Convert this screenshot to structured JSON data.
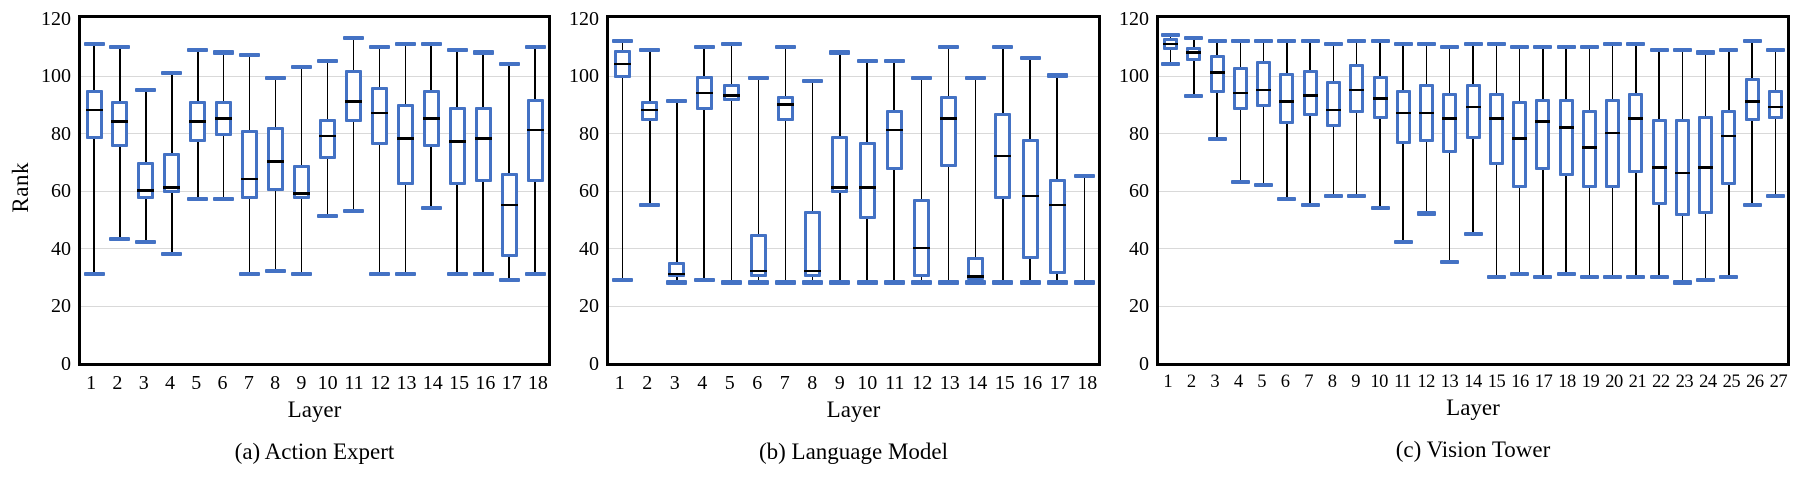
{
  "figure": {
    "y_axis_title": "Rank",
    "x_axis_title": "Layer",
    "accent_color": "#4472c4",
    "median_color": "#000000",
    "whisker_color": "#000000",
    "gridline_color": "#d9d9d9",
    "frame_color": "#000000",
    "box_fill": "#ffffff"
  },
  "chart_data": [
    {
      "type": "boxplot",
      "caption": "(a) Action Expert",
      "xlabel": "Layer",
      "ylabel": "Rank",
      "ylim": [
        0,
        120
      ],
      "y_ticks": [
        0,
        20,
        40,
        60,
        80,
        100,
        120
      ],
      "grid": true,
      "legend": "none",
      "series": [
        {
          "layer": 1,
          "whisker_low": 31,
          "q1": 78,
          "median": 88,
          "q3": 95,
          "whisker_high": 111
        },
        {
          "layer": 2,
          "whisker_low": 43,
          "q1": 75,
          "median": 84,
          "q3": 91,
          "whisker_high": 110
        },
        {
          "layer": 3,
          "whisker_low": 42,
          "q1": 57,
          "median": 60,
          "q3": 70,
          "whisker_high": 95
        },
        {
          "layer": 4,
          "whisker_low": 38,
          "q1": 59,
          "median": 61,
          "q3": 73,
          "whisker_high": 101
        },
        {
          "layer": 5,
          "whisker_low": 57,
          "q1": 77,
          "median": 84,
          "q3": 91,
          "whisker_high": 109
        },
        {
          "layer": 6,
          "whisker_low": 57,
          "q1": 79,
          "median": 85,
          "q3": 91,
          "whisker_high": 108
        },
        {
          "layer": 7,
          "whisker_low": 31,
          "q1": 57,
          "median": 64,
          "q3": 81,
          "whisker_high": 107
        },
        {
          "layer": 8,
          "whisker_low": 32,
          "q1": 60,
          "median": 70,
          "q3": 82,
          "whisker_high": 99
        },
        {
          "layer": 9,
          "whisker_low": 31,
          "q1": 57,
          "median": 59,
          "q3": 69,
          "whisker_high": 103
        },
        {
          "layer": 10,
          "whisker_low": 51,
          "q1": 71,
          "median": 79,
          "q3": 85,
          "whisker_high": 105
        },
        {
          "layer": 11,
          "whisker_low": 53,
          "q1": 84,
          "median": 91,
          "q3": 102,
          "whisker_high": 113
        },
        {
          "layer": 12,
          "whisker_low": 31,
          "q1": 76,
          "median": 87,
          "q3": 96,
          "whisker_high": 110
        },
        {
          "layer": 13,
          "whisker_low": 31,
          "q1": 62,
          "median": 78,
          "q3": 90,
          "whisker_high": 111
        },
        {
          "layer": 14,
          "whisker_low": 54,
          "q1": 75,
          "median": 85,
          "q3": 95,
          "whisker_high": 111
        },
        {
          "layer": 15,
          "whisker_low": 31,
          "q1": 62,
          "median": 77,
          "q3": 89,
          "whisker_high": 109
        },
        {
          "layer": 16,
          "whisker_low": 31,
          "q1": 63,
          "median": 78,
          "q3": 89,
          "whisker_high": 108
        },
        {
          "layer": 17,
          "whisker_low": 29,
          "q1": 37,
          "median": 55,
          "q3": 66,
          "whisker_high": 104
        },
        {
          "layer": 18,
          "whisker_low": 31,
          "q1": 63,
          "median": 81,
          "q3": 92,
          "whisker_high": 110
        }
      ]
    },
    {
      "type": "boxplot",
      "caption": "(b) Language Model",
      "xlabel": "Layer",
      "ylabel": "Rank",
      "ylim": [
        0,
        120
      ],
      "y_ticks": [
        0,
        20,
        40,
        60,
        80,
        100,
        120
      ],
      "grid": true,
      "legend": "none",
      "series": [
        {
          "layer": 1,
          "whisker_low": 29,
          "q1": 99,
          "median": 104,
          "q3": 109,
          "whisker_high": 112
        },
        {
          "layer": 2,
          "whisker_low": 55,
          "q1": 84,
          "median": 88,
          "q3": 91,
          "whisker_high": 109
        },
        {
          "layer": 3,
          "whisker_low": 28,
          "q1": 30,
          "median": 31,
          "q3": 35,
          "whisker_high": 91
        },
        {
          "layer": 4,
          "whisker_low": 29,
          "q1": 88,
          "median": 94,
          "q3": 100,
          "whisker_high": 110
        },
        {
          "layer": 5,
          "whisker_low": 28,
          "q1": 91,
          "median": 93,
          "q3": 97,
          "whisker_high": 111
        },
        {
          "layer": 6,
          "whisker_low": 28,
          "q1": 30,
          "median": 32,
          "q3": 45,
          "whisker_high": 99
        },
        {
          "layer": 7,
          "whisker_low": 28,
          "q1": 84,
          "median": 90,
          "q3": 93,
          "whisker_high": 110
        },
        {
          "layer": 8,
          "whisker_low": 28,
          "q1": 30,
          "median": 32,
          "q3": 53,
          "whisker_high": 98
        },
        {
          "layer": 9,
          "whisker_low": 28,
          "q1": 59,
          "median": 61,
          "q3": 79,
          "whisker_high": 108
        },
        {
          "layer": 10,
          "whisker_low": 28,
          "q1": 50,
          "median": 61,
          "q3": 77,
          "whisker_high": 105
        },
        {
          "layer": 11,
          "whisker_low": 28,
          "q1": 67,
          "median": 81,
          "q3": 88,
          "whisker_high": 105
        },
        {
          "layer": 12,
          "whisker_low": 28,
          "q1": 30,
          "median": 40,
          "q3": 57,
          "whisker_high": 99
        },
        {
          "layer": 13,
          "whisker_low": 28,
          "q1": 68,
          "median": 85,
          "q3": 93,
          "whisker_high": 110
        },
        {
          "layer": 14,
          "whisker_low": 28,
          "q1": 29,
          "median": 30,
          "q3": 37,
          "whisker_high": 99
        },
        {
          "layer": 15,
          "whisker_low": 28,
          "q1": 57,
          "median": 72,
          "q3": 87,
          "whisker_high": 110
        },
        {
          "layer": 16,
          "whisker_low": 28,
          "q1": 36,
          "median": 58,
          "q3": 78,
          "whisker_high": 106
        },
        {
          "layer": 17,
          "whisker_low": 28,
          "q1": 31,
          "median": 55,
          "q3": 64,
          "whisker_high": 100
        },
        {
          "layer": 18,
          "whisker_low": 28,
          "q1": 28,
          "median": 28,
          "q3": 29,
          "whisker_high": 65
        }
      ]
    },
    {
      "type": "boxplot",
      "caption": "(c) Vision Tower",
      "xlabel": "Layer",
      "ylabel": "Rank",
      "ylim": [
        0,
        120
      ],
      "y_ticks": [
        0,
        20,
        40,
        60,
        80,
        100,
        120
      ],
      "grid": true,
      "legend": "none",
      "series": [
        {
          "layer": 1,
          "whisker_low": 104,
          "q1": 109,
          "median": 111,
          "q3": 113,
          "whisker_high": 114
        },
        {
          "layer": 2,
          "whisker_low": 93,
          "q1": 105,
          "median": 108,
          "q3": 110,
          "whisker_high": 113
        },
        {
          "layer": 3,
          "whisker_low": 78,
          "q1": 94,
          "median": 101,
          "q3": 107,
          "whisker_high": 112
        },
        {
          "layer": 4,
          "whisker_low": 63,
          "q1": 88,
          "median": 94,
          "q3": 103,
          "whisker_high": 112
        },
        {
          "layer": 5,
          "whisker_low": 62,
          "q1": 89,
          "median": 95,
          "q3": 105,
          "whisker_high": 112
        },
        {
          "layer": 6,
          "whisker_low": 57,
          "q1": 83,
          "median": 91,
          "q3": 101,
          "whisker_high": 112
        },
        {
          "layer": 7,
          "whisker_low": 55,
          "q1": 86,
          "median": 93,
          "q3": 102,
          "whisker_high": 112
        },
        {
          "layer": 8,
          "whisker_low": 58,
          "q1": 82,
          "median": 88,
          "q3": 98,
          "whisker_high": 111
        },
        {
          "layer": 9,
          "whisker_low": 58,
          "q1": 87,
          "median": 95,
          "q3": 104,
          "whisker_high": 112
        },
        {
          "layer": 10,
          "whisker_low": 54,
          "q1": 85,
          "median": 92,
          "q3": 100,
          "whisker_high": 112
        },
        {
          "layer": 11,
          "whisker_low": 42,
          "q1": 76,
          "median": 87,
          "q3": 95,
          "whisker_high": 111
        },
        {
          "layer": 12,
          "whisker_low": 52,
          "q1": 77,
          "median": 87,
          "q3": 97,
          "whisker_high": 111
        },
        {
          "layer": 13,
          "whisker_low": 35,
          "q1": 73,
          "median": 85,
          "q3": 94,
          "whisker_high": 110
        },
        {
          "layer": 14,
          "whisker_low": 45,
          "q1": 78,
          "median": 89,
          "q3": 97,
          "whisker_high": 111
        },
        {
          "layer": 15,
          "whisker_low": 30,
          "q1": 69,
          "median": 85,
          "q3": 94,
          "whisker_high": 111
        },
        {
          "layer": 16,
          "whisker_low": 31,
          "q1": 61,
          "median": 78,
          "q3": 91,
          "whisker_high": 110
        },
        {
          "layer": 17,
          "whisker_low": 30,
          "q1": 67,
          "median": 84,
          "q3": 92,
          "whisker_high": 110
        },
        {
          "layer": 18,
          "whisker_low": 31,
          "q1": 65,
          "median": 82,
          "q3": 92,
          "whisker_high": 110
        },
        {
          "layer": 19,
          "whisker_low": 30,
          "q1": 61,
          "median": 75,
          "q3": 88,
          "whisker_high": 110
        },
        {
          "layer": 20,
          "whisker_low": 30,
          "q1": 61,
          "median": 80,
          "q3": 92,
          "whisker_high": 111
        },
        {
          "layer": 21,
          "whisker_low": 30,
          "q1": 66,
          "median": 85,
          "q3": 94,
          "whisker_high": 111
        },
        {
          "layer": 22,
          "whisker_low": 30,
          "q1": 55,
          "median": 68,
          "q3": 85,
          "whisker_high": 109
        },
        {
          "layer": 23,
          "whisker_low": 28,
          "q1": 51,
          "median": 66,
          "q3": 85,
          "whisker_high": 109
        },
        {
          "layer": 24,
          "whisker_low": 29,
          "q1": 52,
          "median": 68,
          "q3": 86,
          "whisker_high": 108
        },
        {
          "layer": 25,
          "whisker_low": 30,
          "q1": 62,
          "median": 79,
          "q3": 88,
          "whisker_high": 109
        },
        {
          "layer": 26,
          "whisker_low": 55,
          "q1": 84,
          "median": 91,
          "q3": 99,
          "whisker_high": 112
        },
        {
          "layer": 27,
          "whisker_low": 58,
          "q1": 85,
          "median": 89,
          "q3": 95,
          "whisker_high": 109
        }
      ]
    }
  ]
}
